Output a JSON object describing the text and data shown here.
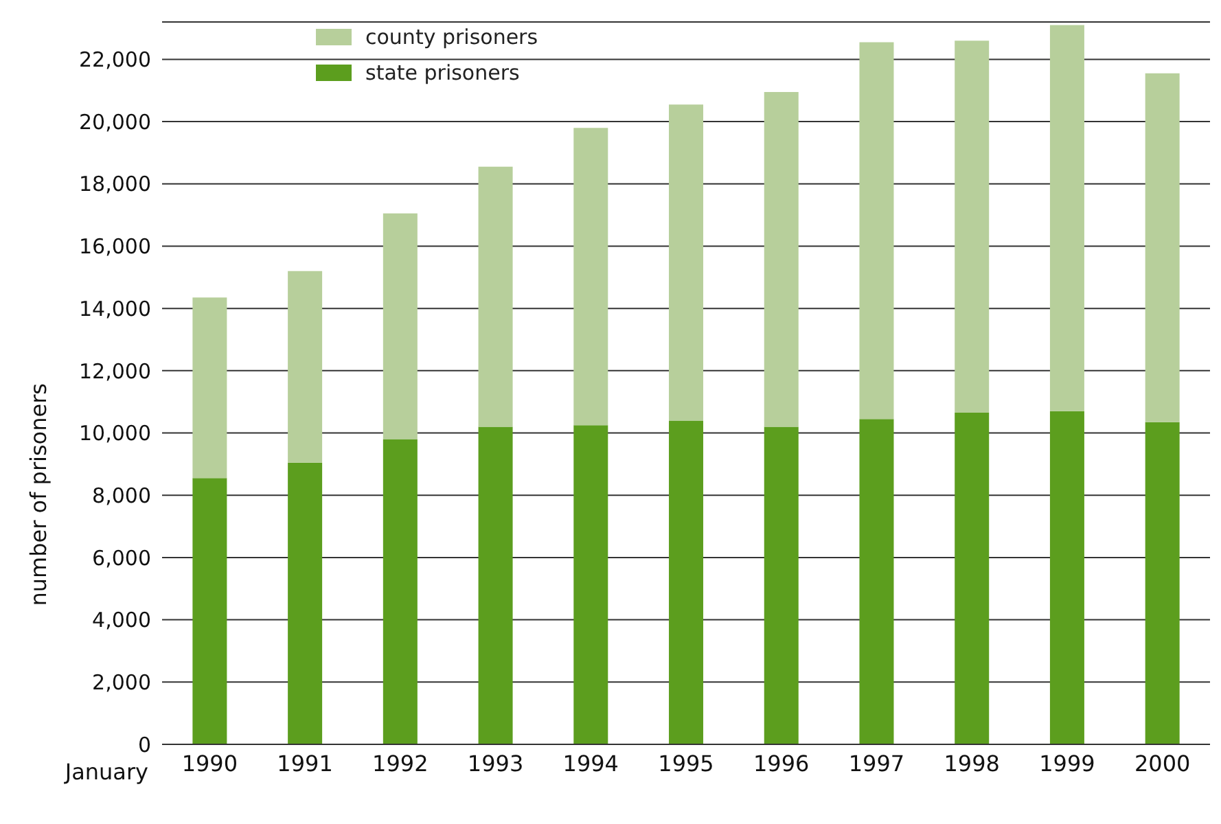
{
  "chart_data": {
    "type": "bar",
    "stacked": true,
    "xlabel": "January",
    "ylabel": "number of prisoners",
    "categories": [
      "1990",
      "1991",
      "1992",
      "1993",
      "1994",
      "1995",
      "1996",
      "1997",
      "1998",
      "1999",
      "2000"
    ],
    "series": [
      {
        "name": "state prisoners",
        "color": "#5c9e1e",
        "values": [
          8550,
          9050,
          9800,
          10200,
          10250,
          10400,
          10200,
          10450,
          10650,
          10700,
          10350
        ]
      },
      {
        "name": "county prisoners",
        "color": "#b7cf9b",
        "values": [
          5800,
          6150,
          7250,
          8350,
          9550,
          10150,
          10750,
          12100,
          11950,
          12400,
          11200
        ]
      }
    ],
    "ylim": [
      0,
      23200
    ],
    "yticks": [
      0,
      {
        "value": 2000,
        "label": "2,000"
      },
      {
        "value": 4000,
        "label": "4,000"
      },
      {
        "value": 6000,
        "label": "6,000"
      },
      {
        "value": 8000,
        "label": "8,000"
      },
      {
        "value": 10000,
        "label": "10,000"
      },
      {
        "value": 12000,
        "label": "12,000"
      },
      {
        "value": 14000,
        "label": "14,000"
      },
      {
        "value": 16000,
        "label": "16,000"
      },
      {
        "value": 18000,
        "label": "18,000"
      },
      {
        "value": 20000,
        "label": "20,000"
      },
      {
        "value": 22000,
        "label": "22,000"
      }
    ],
    "grid": "y",
    "legend": "top left"
  }
}
